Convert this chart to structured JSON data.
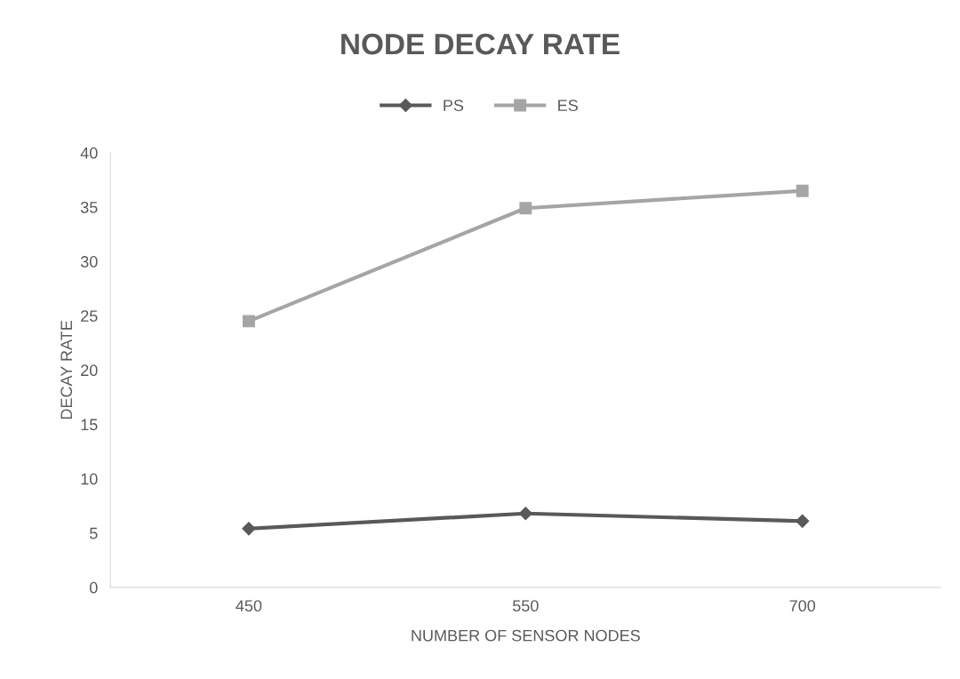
{
  "chart_data": {
    "type": "line",
    "title": "NODE DECAY RATE",
    "xlabel": "NUMBER OF SENSOR NODES",
    "ylabel": "DECAY RATE",
    "categories": [
      "450",
      "550",
      "700"
    ],
    "series": [
      {
        "name": "PS",
        "color": "#595959",
        "marker": "diamond",
        "values": [
          5.4,
          6.8,
          6.1
        ]
      },
      {
        "name": "ES",
        "color": "#a5a5a5",
        "marker": "square",
        "values": [
          24.5,
          34.9,
          36.5
        ]
      }
    ],
    "ylim": [
      0,
      40
    ],
    "yticks": [
      0,
      5,
      10,
      15,
      20,
      25,
      30,
      35,
      40
    ],
    "grid": false,
    "legend": "top",
    "line_style": "solid"
  }
}
